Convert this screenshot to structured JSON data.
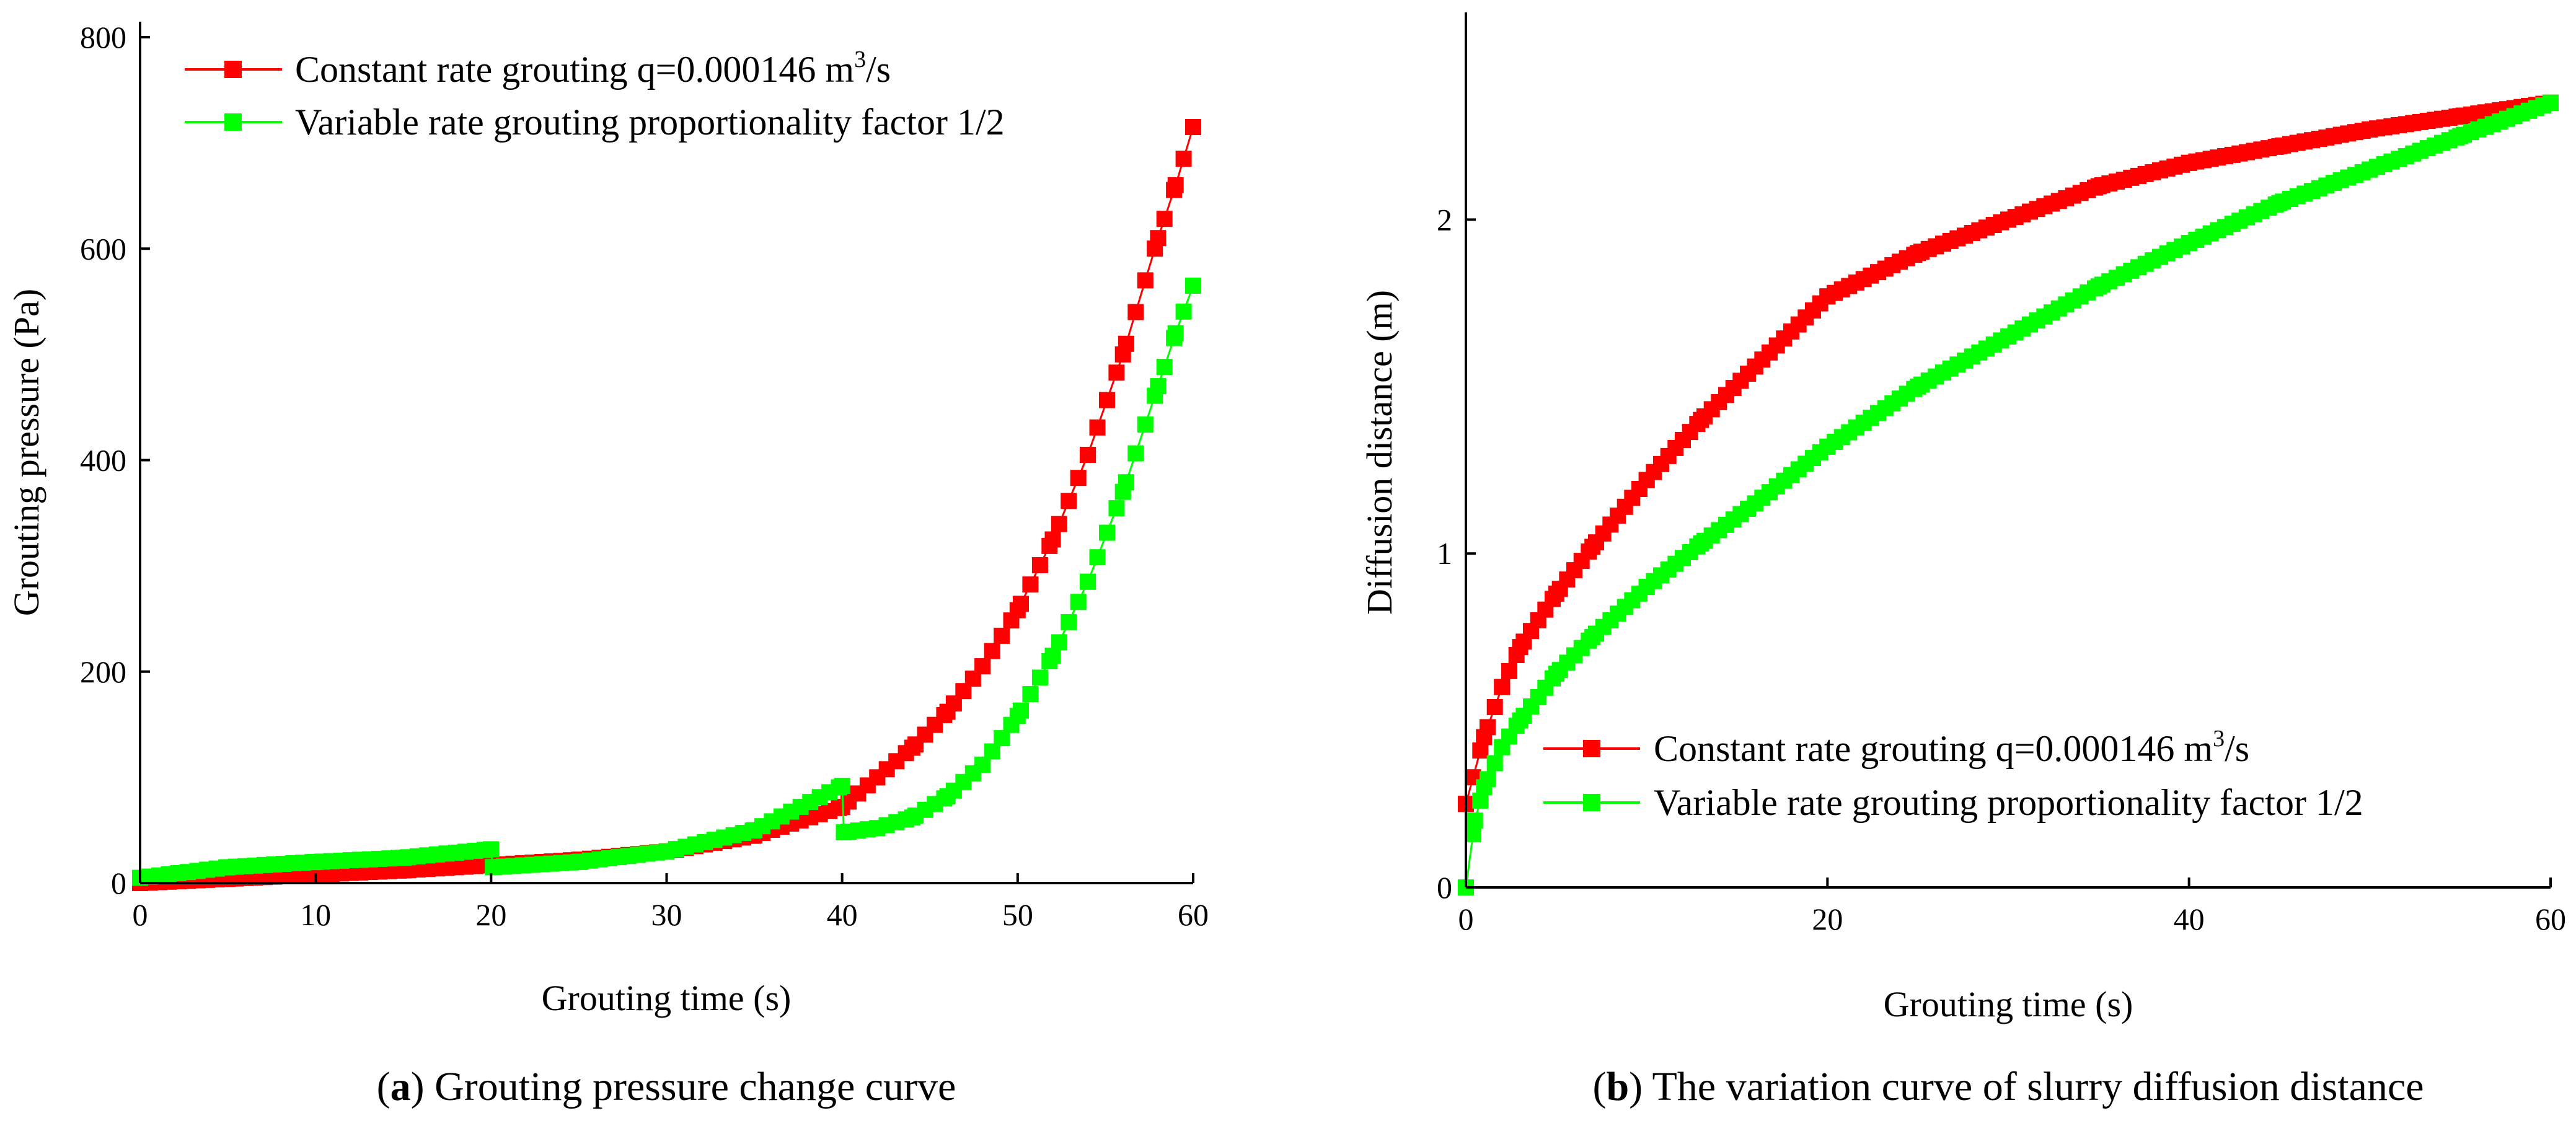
{
  "chart_data": [
    {
      "type": "line",
      "caption_letter": "a",
      "caption_text": "Grouting pressure change curve",
      "xlabel": "Grouting time (s)",
      "ylabel": "Grouting pressure (Pa)",
      "xlim": [
        0,
        60
      ],
      "ylim": [
        0,
        800
      ],
      "xticks": [
        "0",
        "10",
        "20",
        "30",
        "40",
        "50",
        "60"
      ],
      "yticks": [
        "0",
        "200",
        "400",
        "600",
        "800"
      ],
      "grid": false,
      "legend_position": "top-left",
      "series": [
        {
          "name": "Constant rate grouting  q=0.000146 m³/s",
          "name_main": "Constant rate grouting  q=0.000146 m",
          "name_sup": "3",
          "name_tail": "/s",
          "color": "#ff0000",
          "x": [
            0,
            5,
            10,
            15,
            20,
            25,
            30,
            35,
            40,
            42,
            44,
            46,
            48,
            50,
            52,
            54,
            56,
            58,
            59,
            60
          ],
          "y": [
            0,
            4,
            8,
            12,
            17,
            22,
            30,
            45,
            72,
            100,
            128,
            162,
            205,
            258,
            325,
            405,
            500,
            610,
            660,
            715
          ]
        },
        {
          "name": "Variable rate grouting  proportionality factor 1/2",
          "color": "#00ff00",
          "x": [
            0,
            5,
            10,
            15,
            20,
            20.1,
            25,
            30,
            35,
            40,
            40.1,
            42,
            44,
            46,
            48,
            50,
            52,
            54,
            56,
            58,
            59,
            60
          ],
          "y": [
            5,
            15,
            20,
            24,
            32,
            15,
            20,
            30,
            50,
            92,
            48,
            52,
            62,
            82,
            112,
            158,
            215,
            285,
            370,
            470,
            520,
            565
          ]
        }
      ]
    },
    {
      "type": "line",
      "caption_letter": "b",
      "caption_text": "The variation curve of slurry diffusion distance",
      "xlabel": "Grouting time (s)",
      "ylabel": "Diffusion distance (m)",
      "xlim": [
        0,
        60
      ],
      "ylim": [
        0,
        2.5
      ],
      "xticks": [
        "0",
        "20",
        "40",
        "60"
      ],
      "yticks": [
        "0",
        "1",
        "2"
      ],
      "grid": false,
      "legend_position": "bottom-right",
      "series": [
        {
          "name": "Constant rate grouting  q=0.000146 m³/s",
          "name_main": "Constant rate grouting  q=0.000146 m",
          "name_sup": "3",
          "name_tail": "/s",
          "color": "#ff0000",
          "x": [
            0,
            1,
            2,
            3,
            5,
            7,
            10,
            13,
            16,
            20,
            25,
            30,
            35,
            40,
            45,
            50,
            55,
            60
          ],
          "y": [
            0.25,
            0.45,
            0.6,
            0.72,
            0.88,
            1.02,
            1.22,
            1.4,
            1.56,
            1.77,
            1.9,
            2.0,
            2.1,
            2.17,
            2.22,
            2.27,
            2.31,
            2.35
          ]
        },
        {
          "name": "Variable rate grouting   proportionality factor 1/2",
          "color": "#00ff00",
          "x": [
            0,
            0.5,
            1,
            2,
            3,
            5,
            7,
            10,
            13,
            16,
            20,
            25,
            30,
            35,
            40,
            45,
            50,
            55,
            60
          ],
          "y": [
            0,
            0.2,
            0.3,
            0.42,
            0.5,
            0.64,
            0.75,
            0.9,
            1.03,
            1.15,
            1.32,
            1.5,
            1.65,
            1.8,
            1.93,
            2.05,
            2.15,
            2.25,
            2.35
          ]
        }
      ]
    }
  ]
}
